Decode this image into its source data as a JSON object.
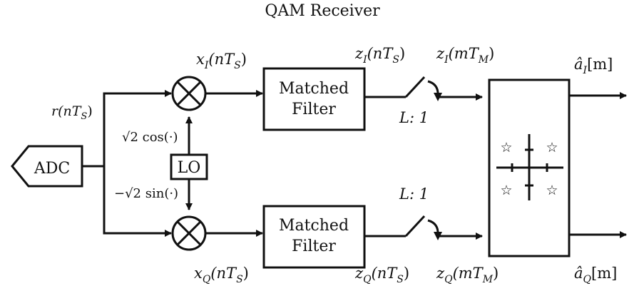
{
  "title": "QAM Receiver",
  "blocks": {
    "adc": "ADC",
    "lo": "LO",
    "matched_filter_top": [
      "Matched",
      "Filter"
    ],
    "matched_filter_bottom": [
      "Matched",
      "Filter"
    ]
  },
  "signals": {
    "r": "r(nT",
    "r_sub": "S",
    "r_tail": ")",
    "xi": "x",
    "xi_sub": "I",
    "xi_arg": "(nT",
    "xi_arg_sub": "S",
    "xi_tail": ")",
    "xq": "x",
    "xq_sub": "Q",
    "xq_arg": "(nT",
    "xq_arg_sub": "S",
    "xq_tail": ")",
    "zi_n": "z",
    "zi_n_sub": "I",
    "zi_n_arg": "(nT",
    "zi_n_arg_sub": "S",
    "zi_n_tail": ")",
    "zq_n": "z",
    "zq_n_sub": "Q",
    "zq_n_arg": "(nT",
    "zq_n_arg_sub": "S",
    "zq_n_tail": ")",
    "zi_m": "z",
    "zi_m_sub": "I",
    "zi_m_arg": "(mT",
    "zi_m_arg_sub": "M",
    "zi_m_tail": ")",
    "zq_m": "z",
    "zq_m_sub": "Q",
    "zq_m_arg": "(mT",
    "zq_m_arg_sub": "M",
    "zq_m_tail": ")",
    "ai": "â",
    "ai_sub": "I",
    "ai_tail": "[m]",
    "aq": "â",
    "aq_sub": "Q",
    "aq_tail": "[m]"
  },
  "lo_outputs": {
    "cos": "√2 cos(·)",
    "sin": "−√2 sin(·)"
  },
  "decimation": {
    "top": "L: 1",
    "bottom": "L: 1"
  },
  "constellation_symbol": "☆"
}
